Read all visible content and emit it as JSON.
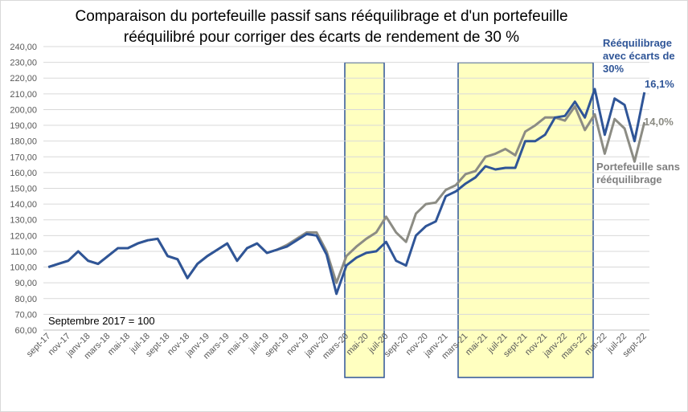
{
  "chart_data": {
    "type": "line",
    "title": "Comparaison du portefeuille passif sans rééquilibrage et d'un portefeuille rééquilibré pour corriger des écarts de rendement de 30 %",
    "note": "Septembre 2017 = 100",
    "categories": [
      "sept-17",
      null,
      "nov-17",
      null,
      "janv-18",
      null,
      "mars-18",
      null,
      "mai-18",
      null,
      "juil-18",
      null,
      "sept-18",
      null,
      "nov-18",
      null,
      "janv-19",
      null,
      "mars-19",
      null,
      "mai-19",
      null,
      "juil-19",
      null,
      "sept-19",
      null,
      "nov-19",
      null,
      "janv-20",
      null,
      "mars-20",
      null,
      "mai-20",
      null,
      "juil-20",
      null,
      "sept-20",
      null,
      "nov-20",
      null,
      "janv-21",
      null,
      "mars-21",
      null,
      "mai-21",
      null,
      "juil-21",
      null,
      "sept-21",
      null,
      "nov-21",
      null,
      "janv-22",
      null,
      "mars-22",
      null,
      "mai-22",
      null,
      "juil-22",
      null,
      "sept-22"
    ],
    "series": [
      {
        "name": "Portefeuille sans rééquilibrage",
        "color": "#8c8c84",
        "end_label": "14,0%",
        "values": [
          100,
          102,
          104,
          110,
          104,
          102,
          107,
          112,
          112,
          115,
          117,
          118,
          107,
          105,
          93,
          102,
          107,
          111,
          115,
          104,
          112,
          115,
          109,
          111,
          114,
          118,
          122,
          122,
          110,
          90,
          107,
          113,
          118,
          122,
          132,
          122,
          116,
          134,
          140,
          141,
          149,
          152,
          159,
          161,
          170,
          172,
          175,
          171,
          186,
          190,
          195,
          195,
          193,
          202,
          187,
          197,
          172,
          194,
          188,
          167,
          192
        ]
      },
      {
        "name": "Rééquilibrage avec écarts de 30%",
        "color": "#2f5597",
        "end_label": "16,1%",
        "values": [
          100,
          102,
          104,
          110,
          104,
          102,
          107,
          112,
          112,
          115,
          117,
          118,
          107,
          105,
          93,
          102,
          107,
          111,
          115,
          104,
          112,
          115,
          109,
          111,
          113,
          117,
          121,
          120,
          108,
          83,
          101,
          106,
          109,
          110,
          116,
          104,
          101,
          120,
          126,
          129,
          145,
          148,
          153,
          157,
          164,
          162,
          163,
          163,
          180,
          180,
          184,
          195,
          196,
          205,
          195,
          213,
          184,
          207,
          203,
          180,
          211
        ]
      }
    ],
    "ylim": [
      60,
      240
    ],
    "yticks": [
      {
        "value": 60,
        "label": "60,00"
      },
      {
        "value": 70,
        "label": "70,00"
      },
      {
        "value": 80,
        "label": "80,00"
      },
      {
        "value": 90,
        "label": "90,00"
      },
      {
        "value": 100,
        "label": "100,00"
      },
      {
        "value": 110,
        "label": "110,00"
      },
      {
        "value": 120,
        "label": "120,00"
      },
      {
        "value": 130,
        "label": "130,00"
      },
      {
        "value": 140,
        "label": "140,00"
      },
      {
        "value": 150,
        "label": "150,00"
      },
      {
        "value": 160,
        "label": "160,00"
      },
      {
        "value": 170,
        "label": "170,00"
      },
      {
        "value": 180,
        "label": "180,00"
      },
      {
        "value": 190,
        "label": "190,00"
      },
      {
        "value": 200,
        "label": "200,00"
      },
      {
        "value": 210,
        "label": "210,00"
      },
      {
        "value": 220,
        "label": "220,00"
      },
      {
        "value": 230,
        "label": "230,00"
      },
      {
        "value": 240,
        "label": "240,00"
      }
    ],
    "grid": true
  }
}
